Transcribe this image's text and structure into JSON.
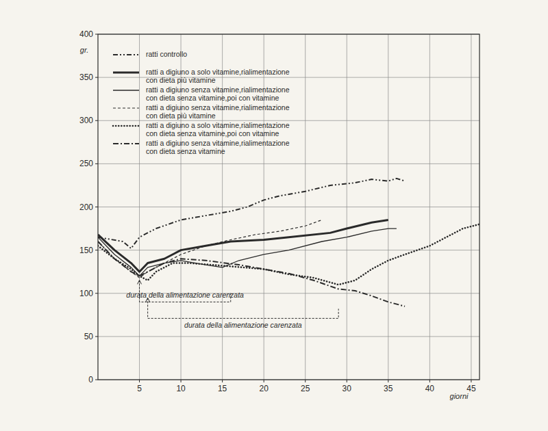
{
  "chart_data": {
    "type": "line",
    "y_label": "gr.",
    "x_label": "giorni",
    "xlim": [
      0,
      46
    ],
    "ylim": [
      0,
      400
    ],
    "xticks": [
      5,
      10,
      15,
      20,
      25,
      30,
      35,
      40,
      45
    ],
    "yticks": [
      0,
      50,
      100,
      150,
      200,
      250,
      300,
      350,
      400
    ],
    "grid": true,
    "legend": "top-left",
    "color": "#2a2a2a",
    "series": [
      {
        "name": "ratti controllo",
        "line_style": "dash-dot-dot",
        "x": [
          0,
          3,
          4,
          5,
          7,
          10,
          13,
          16,
          18,
          20,
          22,
          25,
          28,
          31,
          33,
          35,
          36,
          37
        ],
        "values": [
          165,
          160,
          152,
          165,
          175,
          185,
          190,
          195,
          200,
          208,
          213,
          218,
          225,
          228,
          232,
          230,
          233,
          230
        ]
      },
      {
        "name": "ratti a digiuno a solo vitamine,rialimentazione con dieta più vitamine",
        "line_style": "thick",
        "x": [
          0,
          2,
          4,
          5,
          6,
          8,
          10,
          13,
          16,
          20,
          23,
          28,
          30,
          33,
          35
        ],
        "values": [
          168,
          150,
          135,
          125,
          135,
          140,
          150,
          155,
          160,
          162,
          165,
          170,
          175,
          182,
          185
        ]
      },
      {
        "name": "ratti a digiuno senza vitamine,rialimentazione con dieta senza vitamine,poi con vitamine",
        "line_style": "solid",
        "x": [
          0,
          2,
          4,
          5,
          6,
          8,
          10,
          13,
          15,
          17,
          20,
          23,
          27,
          30,
          33,
          35,
          36
        ],
        "values": [
          165,
          145,
          130,
          120,
          130,
          135,
          138,
          133,
          130,
          138,
          145,
          150,
          160,
          165,
          172,
          175,
          175
        ]
      },
      {
        "name": "ratti a digiuno senza vitamine,rialimentazione con dieta più vitamine",
        "line_style": "dashed",
        "x": [
          0,
          2,
          4,
          5,
          6,
          8,
          10,
          13,
          16,
          19,
          22,
          25,
          27
        ],
        "values": [
          160,
          140,
          125,
          118,
          125,
          135,
          145,
          155,
          162,
          168,
          172,
          178,
          185
        ]
      },
      {
        "name": "ratti a digiuno a solo vitamine,rialimentazione con dieta senza vitamine,poi con vitamine",
        "line_style": "dotted",
        "x": [
          0,
          2,
          4,
          5,
          6,
          7,
          9,
          11,
          15,
          20,
          23,
          26,
          29,
          31,
          33,
          35,
          37,
          40,
          42,
          44,
          46
        ],
        "values": [
          155,
          140,
          128,
          120,
          115,
          125,
          135,
          135,
          132,
          128,
          122,
          118,
          110,
          115,
          128,
          138,
          145,
          155,
          165,
          175,
          180
        ]
      },
      {
        "name": "ratti a digiuno senza vitamine,rialimentazione con dieta senza vitamine",
        "line_style": "dash-dot",
        "x": [
          0,
          2,
          4,
          5,
          6,
          8,
          10,
          13,
          17,
          20,
          23,
          26,
          29,
          31,
          33,
          35,
          37
        ],
        "values": [
          160,
          140,
          125,
          120,
          125,
          135,
          140,
          138,
          133,
          128,
          123,
          115,
          105,
          103,
          97,
          90,
          85
        ]
      }
    ],
    "annotations": [
      {
        "text": "durata della alimentazione carenzata",
        "from": 5,
        "to": 16,
        "y": 90,
        "position": "above"
      },
      {
        "text": "durata della alimentazione carenzata",
        "from": 6,
        "to": 29,
        "y": 71,
        "position": "below"
      }
    ]
  }
}
